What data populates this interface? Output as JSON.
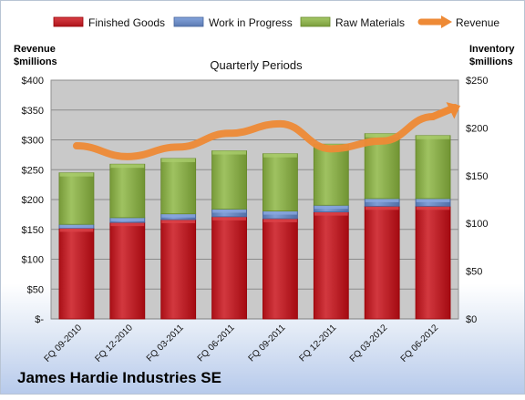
{
  "chart_data": {
    "type": "bar",
    "stacked": true,
    "company": "James Hardie Industries SE",
    "title": "Quarterly Periods",
    "left_axis_label": [
      "Revenue",
      "$millions"
    ],
    "right_axis_label": [
      "Inventory",
      "$millions"
    ],
    "categories": [
      "FQ 09-2010",
      "FQ 12-2010",
      "FQ 03-2011",
      "FQ 06-2011",
      "FQ 09-2011",
      "FQ 12-2011",
      "FQ 03-2012",
      "FQ 06-2012"
    ],
    "left_axis": {
      "min": 0,
      "max": 400,
      "ticks": [
        0,
        50,
        100,
        150,
        200,
        250,
        300,
        350,
        400
      ],
      "tick_labels": [
        "$-",
        "$50",
        "$100",
        "$150",
        "$200",
        "$250",
        "$300",
        "$350",
        "$400"
      ]
    },
    "right_axis": {
      "min": 0,
      "max": 250,
      "ticks": [
        0,
        50,
        100,
        150,
        200,
        250
      ],
      "tick_labels": [
        "$0",
        "$50",
        "$100",
        "$150",
        "$200",
        "$250"
      ]
    },
    "series": [
      {
        "name": "Finished Goods",
        "axis": "right",
        "color": "#c0262d",
        "values": [
          95,
          101,
          104,
          107,
          105,
          112,
          118,
          118
        ]
      },
      {
        "name": "Work in Progress",
        "axis": "right",
        "color": "#6d8cc4",
        "values": [
          4,
          5,
          6,
          8,
          8,
          7,
          8,
          8
        ]
      },
      {
        "name": "Raw Materials",
        "axis": "right",
        "color": "#8db04f",
        "values": [
          54,
          56,
          58,
          61,
          60,
          64,
          68,
          66
        ]
      },
      {
        "name": "Revenue",
        "axis": "left",
        "type": "line",
        "color": "#ee8a36",
        "values": [
          290,
          272,
          288,
          311,
          327,
          285,
          298,
          339
        ]
      }
    ],
    "legend": {
      "position": "top",
      "items": [
        {
          "label": "Finished Goods",
          "color": "#c0262d",
          "kind": "bar"
        },
        {
          "label": "Work in Progress",
          "color": "#6d8cc4",
          "kind": "bar"
        },
        {
          "label": "Raw Materials",
          "color": "#8db04f",
          "kind": "bar"
        },
        {
          "label": "Revenue",
          "color": "#ee8a36",
          "kind": "arrow"
        }
      ]
    },
    "grid": true,
    "plot_background": "#c9c9c9",
    "grid_color": "#8c8c8c"
  }
}
